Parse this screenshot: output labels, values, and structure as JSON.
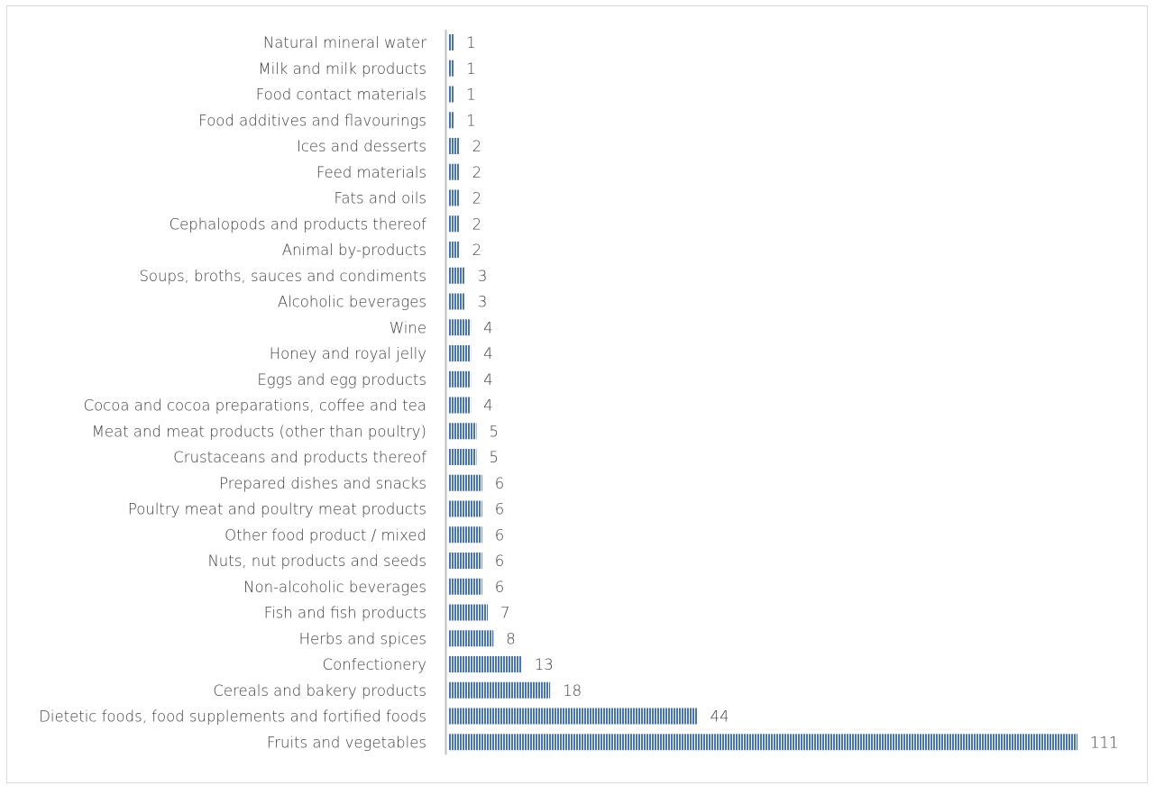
{
  "chart_data": {
    "type": "bar",
    "orientation": "horizontal",
    "categories": [
      "Natural mineral water",
      "Milk and milk products",
      "Food contact materials",
      "Food additives and flavourings",
      "Ices and desserts",
      "Feed materials",
      "Fats and oils",
      "Cephalopods and products thereof",
      "Animal by-products",
      "Soups, broths, sauces and condiments",
      "Alcoholic beverages",
      "Wine",
      "Honey and royal jelly",
      "Eggs and egg products",
      "Cocoa and cocoa preparations, coffee and tea",
      "Meat and meat products (other than poultry)",
      "Crustaceans and products thereof",
      "Prepared dishes and snacks",
      "Poultry meat and poultry meat products",
      "Other food product / mixed",
      "Nuts, nut products and seeds",
      "Non-alcoholic beverages",
      "Fish and fish products",
      "Herbs and spices",
      "Confectionery",
      "Cereals and bakery products",
      "Dietetic foods, food supplements and fortified foods",
      "Fruits and vegetables"
    ],
    "values": [
      1,
      1,
      1,
      1,
      2,
      2,
      2,
      2,
      2,
      3,
      3,
      4,
      4,
      4,
      4,
      5,
      5,
      6,
      6,
      6,
      6,
      6,
      7,
      8,
      13,
      18,
      44,
      111
    ],
    "data_labels": [
      "1",
      "1",
      "1",
      "1",
      "2",
      "2",
      "2",
      "2",
      "2",
      "3",
      "3",
      "4",
      "4",
      "4",
      "4",
      "5",
      "5",
      "6",
      "6",
      "6",
      "6",
      "6",
      "7",
      "8",
      "13",
      "18",
      "44",
      "111"
    ],
    "title": "",
    "xlabel": "",
    "ylabel": "",
    "xlim": [
      0,
      111
    ],
    "grid": false,
    "legend": "none",
    "bar_color": "#4472c4",
    "bar_pattern": "vertical-stripes",
    "pattern_stripe_color": "#ffffff",
    "axis_color": "#bfbfbf",
    "text_color": "#404040"
  }
}
